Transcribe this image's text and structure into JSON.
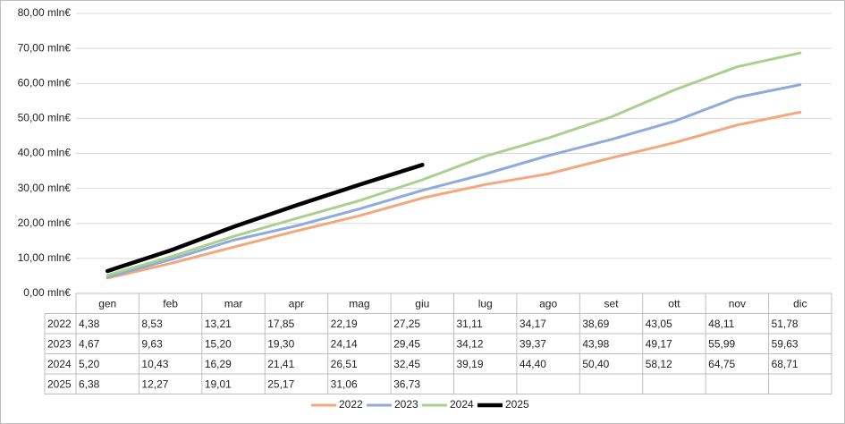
{
  "chart_data": {
    "type": "line",
    "categories": [
      "gen",
      "feb",
      "mar",
      "apr",
      "mag",
      "giu",
      "lug",
      "ago",
      "set",
      "ott",
      "nov",
      "dic"
    ],
    "series": [
      {
        "name": "2022",
        "color": "#f4a77c",
        "values": [
          4.38,
          8.53,
          13.21,
          17.85,
          22.19,
          27.25,
          31.11,
          34.17,
          38.69,
          43.05,
          48.11,
          51.78
        ],
        "value_labels": [
          "4,38",
          "8,53",
          "13,21",
          "17,85",
          "22,19",
          "27,25",
          "31,11",
          "34,17",
          "38,69",
          "43,05",
          "48,11",
          "51,78"
        ]
      },
      {
        "name": "2023",
        "color": "#8faadc",
        "values": [
          4.67,
          9.63,
          15.2,
          19.3,
          24.14,
          29.45,
          34.12,
          39.37,
          43.98,
          49.17,
          55.99,
          59.63
        ],
        "value_labels": [
          "4,67",
          "9,63",
          "15,20",
          "19,30",
          "24,14",
          "29,45",
          "34,12",
          "39,37",
          "43,98",
          "49,17",
          "55,99",
          "59,63"
        ]
      },
      {
        "name": "2024",
        "color": "#a9d18e",
        "values": [
          5.2,
          10.43,
          16.29,
          21.41,
          26.51,
          32.45,
          39.19,
          44.4,
          50.4,
          58.12,
          64.75,
          68.71
        ],
        "value_labels": [
          "5,20",
          "10,43",
          "16,29",
          "21,41",
          "26,51",
          "32,45",
          "39,19",
          "44,40",
          "50,40",
          "58,12",
          "64,75",
          "68,71"
        ]
      },
      {
        "name": "2025",
        "color": "#000000",
        "values": [
          6.38,
          12.27,
          19.01,
          25.17,
          31.06,
          36.73,
          null,
          null,
          null,
          null,
          null,
          null
        ],
        "value_labels": [
          "6,38",
          "12,27",
          "19,01",
          "25,17",
          "31,06",
          "36,73",
          null,
          null,
          null,
          null,
          null,
          null
        ]
      }
    ],
    "ylim": [
      0,
      80
    ],
    "yticks": [
      {
        "value": 0,
        "label": "0,00 mln€"
      },
      {
        "value": 10,
        "label": "10,00 mln€"
      },
      {
        "value": 20,
        "label": "20,00 mln€"
      },
      {
        "value": 30,
        "label": "30,00 mln€"
      },
      {
        "value": 40,
        "label": "40,00 mln€"
      },
      {
        "value": 50,
        "label": "50,00 mln€"
      },
      {
        "value": 60,
        "label": "60,00 mln€"
      },
      {
        "value": 70,
        "label": "70,00 mln€"
      },
      {
        "value": 80,
        "label": "80,00 mln€"
      }
    ],
    "grid": true,
    "legend": "bottom"
  }
}
